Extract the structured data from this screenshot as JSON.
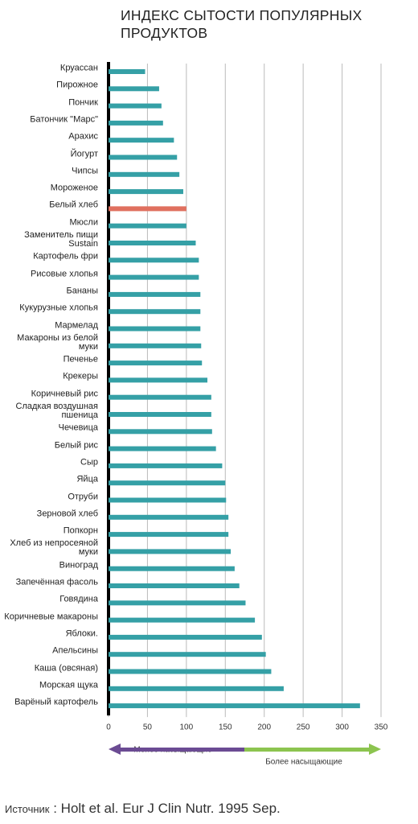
{
  "chart_data": {
    "type": "bar",
    "orientation": "horizontal",
    "title": "ИНДЕКС СЫТОСТИ ПОПУЛЯРНЫХ ПРОДУКТОВ",
    "categories": [
      "Круассан",
      "Пирожное",
      "Пончик",
      "Батончик \"Марс\"",
      "Арахис",
      "Йогурт",
      "Чипсы",
      "Мороженое",
      "Белый хлеб",
      "Мюсли",
      "Заменитель пищи Sustain",
      "Картофель фри",
      "Рисовые хлопья",
      "Бананы",
      "Кукурузные хлопья",
      "Мармелад",
      "Макароны из белой муки",
      "Печенье",
      "Крекеры",
      "Коричневый рис",
      "Сладкая воздушная пшеница",
      "Чечевица",
      "Белый рис",
      "Сыр",
      "Яйца",
      "Отруби",
      "Зерновой хлеб",
      "Попкорн",
      "Хлеб из непросеяной муки",
      "Виноград",
      "Запечённая фасоль",
      "Говядина",
      "Коричневые макароны",
      "Яблоки.",
      "Апельсины",
      "Каша (овсяная)",
      "Морская щука",
      "Варёный картофель"
    ],
    "values": [
      47,
      65,
      68,
      70,
      84,
      88,
      91,
      96,
      100,
      100,
      112,
      116,
      116,
      118,
      118,
      118,
      119,
      120,
      127,
      132,
      132,
      133,
      138,
      146,
      150,
      151,
      154,
      154,
      157,
      162,
      168,
      176,
      188,
      197,
      202,
      209,
      225,
      323
    ],
    "colors": [
      "#35a0a6",
      "#35a0a6",
      "#35a0a6",
      "#35a0a6",
      "#35a0a6",
      "#35a0a6",
      "#35a0a6",
      "#35a0a6",
      "#e0705f",
      "#35a0a6",
      "#35a0a6",
      "#35a0a6",
      "#35a0a6",
      "#35a0a6",
      "#35a0a6",
      "#35a0a6",
      "#35a0a6",
      "#35a0a6",
      "#35a0a6",
      "#35a0a6",
      "#35a0a6",
      "#35a0a6",
      "#35a0a6",
      "#35a0a6",
      "#35a0a6",
      "#35a0a6",
      "#35a0a6",
      "#35a0a6",
      "#35a0a6",
      "#35a0a6",
      "#35a0a6",
      "#35a0a6",
      "#35a0a6",
      "#35a0a6",
      "#35a0a6",
      "#35a0a6",
      "#35a0a6",
      "#35a0a6"
    ],
    "xlim": [
      0,
      350
    ],
    "xticks": [
      0,
      50,
      100,
      150,
      200,
      250,
      300,
      350
    ],
    "grid": true,
    "scale_left": "Менее насыщающие",
    "scale_right": "Более насыщающие",
    "source_label": "Источник",
    "source_text": "Holt et al. Eur J Clin Nutr. 1995 Sep."
  }
}
